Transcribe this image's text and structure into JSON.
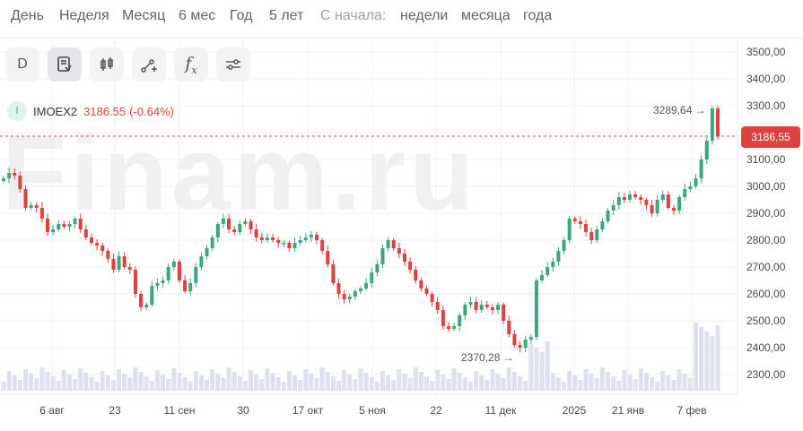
{
  "period_tabs": [
    "День",
    "Неделя",
    "Месяц",
    "6 мес",
    "Год",
    "5 лет"
  ],
  "since_label": "С начала:",
  "since_tabs": [
    "недели",
    "месяца",
    "года"
  ],
  "toolbar": {
    "interval_label": "D",
    "buttons": [
      "indicators-icon",
      "candles-icon",
      "draw-icon",
      "fx-icon",
      "settings-icon"
    ],
    "fx_label": "f"
  },
  "ticker": {
    "badge": "I",
    "name": "IMOEX2",
    "price": "3186.55",
    "change": "(-0.64%)"
  },
  "watermark": "Finam.ru",
  "current_price_tag": "3186,55",
  "annotations": {
    "high": "3289,64 →",
    "low": "2370,28 →"
  },
  "colors": {
    "up": "#3aa87a",
    "down": "#e0413f",
    "volume": "#dde1ee",
    "grid": "#f1f1f1"
  },
  "chart_data": {
    "type": "candlestick",
    "y_ticks": [
      "3500,00",
      "3400,00",
      "3300,00",
      "3200,00",
      "3100,00",
      "3000,00",
      "2900,00",
      "2800,00",
      "2700,00",
      "2600,00",
      "2500,00",
      "2400,00",
      "2300,00"
    ],
    "x_ticks": [
      "6 авг",
      "23",
      "11 сен",
      "30",
      "17 окт",
      "5 ноя",
      "22",
      "11 дек",
      "2025",
      "21 янв",
      "7 фев"
    ],
    "ylim": [
      2270,
      3530
    ],
    "current": 3186.55,
    "high": 3289.64,
    "low": 2370.28,
    "close_series": [
      3030,
      3050,
      3040,
      2990,
      2920,
      2930,
      2920,
      2880,
      2830,
      2840,
      2860,
      2850,
      2860,
      2880,
      2840,
      2810,
      2790,
      2780,
      2760,
      2730,
      2690,
      2740,
      2700,
      2690,
      2600,
      2550,
      2560,
      2630,
      2640,
      2650,
      2700,
      2720,
      2650,
      2610,
      2640,
      2700,
      2740,
      2770,
      2810,
      2860,
      2880,
      2840,
      2830,
      2860,
      2870,
      2840,
      2810,
      2800,
      2810,
      2800,
      2790,
      2790,
      2770,
      2790,
      2800,
      2810,
      2820,
      2800,
      2760,
      2710,
      2640,
      2600,
      2580,
      2590,
      2610,
      2620,
      2640,
      2680,
      2710,
      2770,
      2800,
      2770,
      2750,
      2720,
      2690,
      2650,
      2620,
      2600,
      2570,
      2540,
      2480,
      2470,
      2480,
      2520,
      2560,
      2570,
      2540,
      2560,
      2550,
      2540,
      2560,
      2500,
      2450,
      2410,
      2400,
      2430,
      2440,
      2650,
      2670,
      2700,
      2720,
      2760,
      2800,
      2880,
      2870,
      2860,
      2830,
      2800,
      2840,
      2870,
      2910,
      2930,
      2960,
      2950,
      2970,
      2960,
      2950,
      2930,
      2900,
      2950,
      2970,
      2920,
      2910,
      2960,
      2990,
      3000,
      3030,
      3100,
      3170,
      3290,
      3186
    ]
  }
}
